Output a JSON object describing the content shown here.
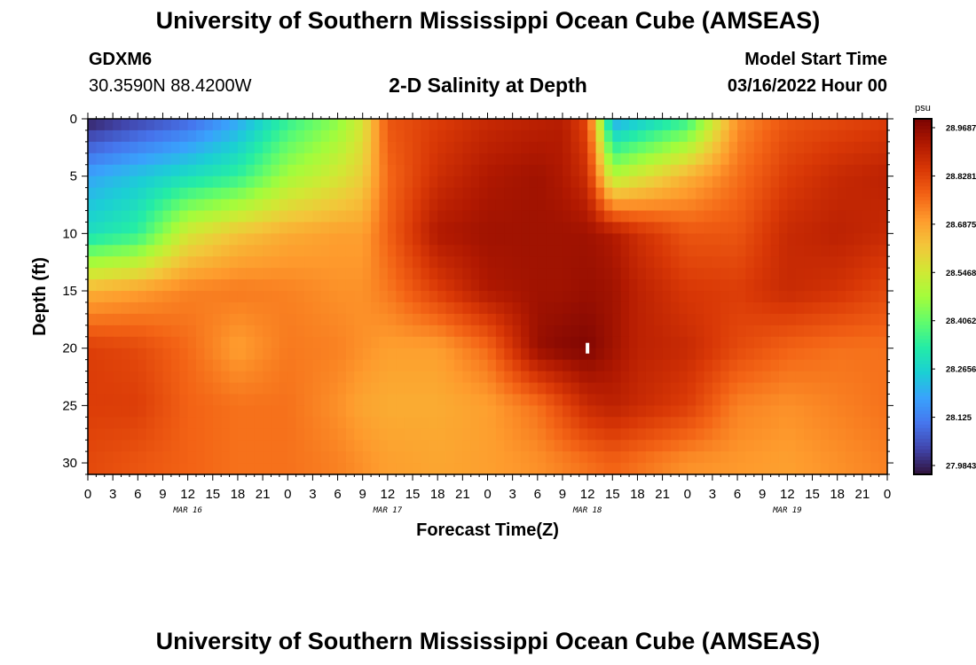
{
  "header": {
    "title": "University of Southern Mississippi Ocean Cube (AMSEAS)",
    "station": "GDXM6",
    "coords": "30.3590N  88.4200W",
    "subtitle": "2-D Salinity at Depth",
    "model_start_label": "Model Start Time",
    "model_start_date": "03/16/2022 Hour 00"
  },
  "footer": {
    "title": "University of Southern Mississippi Ocean Cube (AMSEAS)"
  },
  "chart_data": {
    "type": "heatmap",
    "title": "2-D Salinity at Depth",
    "xlabel": "Forecast Time(Z)",
    "ylabel": "Depth (ft)",
    "x_ticks": [
      "0",
      "3",
      "6",
      "9",
      "12",
      "15",
      "18",
      "21",
      "0",
      "3",
      "6",
      "9",
      "12",
      "15",
      "18",
      "21",
      "0",
      "3",
      "6",
      "9",
      "12",
      "15",
      "18",
      "21",
      "0",
      "3",
      "6",
      "9",
      "12",
      "15",
      "18",
      "21",
      "0"
    ],
    "x_hours_range": [
      0,
      96
    ],
    "date_labels": [
      {
        "hour": 12,
        "label": "MAR 16"
      },
      {
        "hour": 36,
        "label": "MAR 17"
      },
      {
        "hour": 60,
        "label": "MAR 18"
      },
      {
        "hour": 84,
        "label": "MAR 19"
      }
    ],
    "y_ticks": [
      0,
      5,
      10,
      15,
      20,
      25,
      30
    ],
    "ylim": [
      0,
      31
    ],
    "colorbar": {
      "unit": "psu",
      "min": 27.9843,
      "max": 28.9687,
      "labels": [
        "28.9687",
        "28.8281",
        "28.6875",
        "28.5468",
        "28.4062",
        "28.2656",
        "28.125",
        "27.9843"
      ]
    },
    "colormap": [
      "#30123b",
      "#4145ab",
      "#4675ed",
      "#39a2fc",
      "#1bcfd4",
      "#24eca6",
      "#61fc6c",
      "#a4fc3b",
      "#d1e834",
      "#f3c63a",
      "#fe9b2d",
      "#f36315",
      "#d93806",
      "#b11901",
      "#7a0402"
    ],
    "depths_ft": [
      0,
      5,
      10,
      15,
      20,
      25,
      30
    ],
    "hours": [
      0,
      6,
      12,
      18,
      24,
      30,
      33,
      36,
      42,
      48,
      54,
      57,
      60,
      63,
      66,
      72,
      78,
      84,
      90,
      96
    ],
    "salinity": [
      [
        28.0,
        28.05,
        28.1,
        28.2,
        28.35,
        28.45,
        28.55,
        28.78,
        28.82,
        28.86,
        28.88,
        28.89,
        28.8,
        28.2,
        28.25,
        28.35,
        28.7,
        28.78,
        28.8,
        28.82
      ],
      [
        28.2,
        28.25,
        28.3,
        28.35,
        28.48,
        28.55,
        28.6,
        28.75,
        28.85,
        28.9,
        28.92,
        28.9,
        28.85,
        28.5,
        28.55,
        28.65,
        28.74,
        28.82,
        28.86,
        28.88
      ],
      [
        28.3,
        28.35,
        28.55,
        28.62,
        28.66,
        28.68,
        28.68,
        28.76,
        28.9,
        28.92,
        28.92,
        28.92,
        28.92,
        28.9,
        28.85,
        28.78,
        28.78,
        28.86,
        28.88,
        28.86
      ],
      [
        28.65,
        28.68,
        28.72,
        28.73,
        28.72,
        28.7,
        28.7,
        28.73,
        28.82,
        28.9,
        28.92,
        28.92,
        28.93,
        28.92,
        28.88,
        28.83,
        28.82,
        28.86,
        28.84,
        28.8
      ],
      [
        28.82,
        28.8,
        28.75,
        28.68,
        28.73,
        28.72,
        28.7,
        28.68,
        28.68,
        28.75,
        28.93,
        28.95,
        28.96,
        28.92,
        28.88,
        28.86,
        28.8,
        28.76,
        28.74,
        28.74
      ],
      [
        28.82,
        28.82,
        28.76,
        28.74,
        28.74,
        28.7,
        28.67,
        28.66,
        28.66,
        28.68,
        28.74,
        28.8,
        28.86,
        28.88,
        28.86,
        28.82,
        28.72,
        28.7,
        28.72,
        28.74
      ],
      [
        28.8,
        28.78,
        28.76,
        28.74,
        28.74,
        28.72,
        28.7,
        28.68,
        28.67,
        28.68,
        28.7,
        28.72,
        28.74,
        28.76,
        28.74,
        28.7,
        28.69,
        28.68,
        28.7,
        28.72
      ]
    ]
  }
}
